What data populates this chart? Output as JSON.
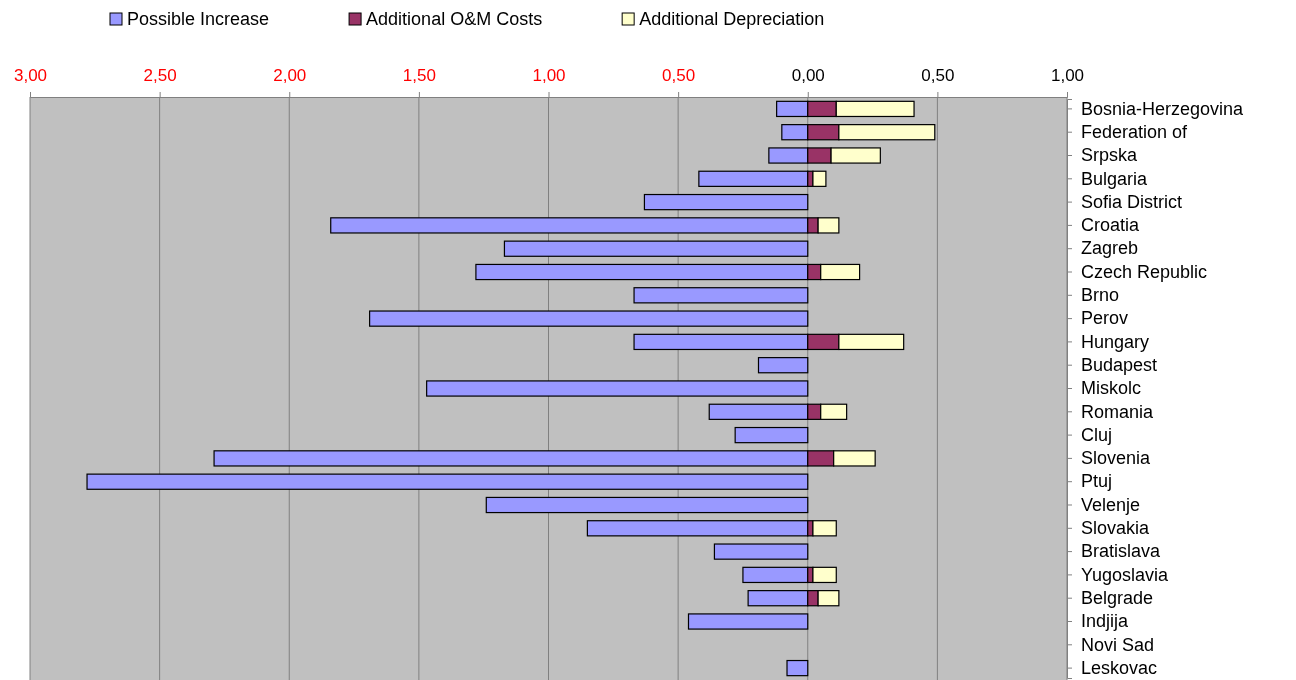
{
  "chart_data": {
    "type": "bar",
    "orientation": "horizontal",
    "stacked": true,
    "grid": "x",
    "legend": "top",
    "categories": [
      "Bosnia-Herzegovina",
      "Federation of",
      "Srpska",
      "Bulgaria",
      "Sofia District",
      "Croatia",
      "Zagreb",
      "Czech Republic",
      "Brno",
      "Perov",
      "Hungary",
      "Budapest",
      "Miskolc",
      "Romania",
      "Cluj",
      "Slovenia",
      "Ptuj",
      "Velenje",
      "Slovakia",
      "Bratislava",
      "Yugoslavia",
      "Belgrade",
      "Indjija",
      "Novi Sad",
      "Leskovac"
    ],
    "xlim": [
      -3,
      1
    ],
    "xticks": [
      {
        "value": -3,
        "label": "3,00"
      },
      {
        "value": -2.5,
        "label": "2,50"
      },
      {
        "value": -2,
        "label": "2,00"
      },
      {
        "value": -1.5,
        "label": "1,50"
      },
      {
        "value": -1,
        "label": "1,00"
      },
      {
        "value": -0.5,
        "label": "0,50"
      },
      {
        "value": 0,
        "label": "0,00"
      },
      {
        "value": 0.5,
        "label": "0,50"
      },
      {
        "value": 1,
        "label": "1,00"
      }
    ],
    "series": [
      {
        "name": "Possible Increase",
        "color": "#9999ff",
        "values": [
          -0.12,
          -0.1,
          -0.15,
          -0.42,
          -0.63,
          -1.84,
          -1.17,
          -1.28,
          -0.67,
          -1.69,
          -0.67,
          -0.19,
          -1.47,
          -0.38,
          -0.28,
          -2.29,
          -2.78,
          -1.24,
          -0.85,
          -0.36,
          -0.25,
          -0.23,
          -0.46,
          null,
          -0.08
        ]
      },
      {
        "name": "Additional O&M Costs",
        "color": "#993366",
        "values": [
          0.11,
          0.12,
          0.09,
          0.02,
          null,
          0.04,
          null,
          0.05,
          null,
          null,
          0.12,
          null,
          null,
          0.05,
          null,
          0.1,
          null,
          null,
          0.02,
          null,
          0.02,
          0.04,
          null,
          null,
          null
        ]
      },
      {
        "name": "Additional Depreciation",
        "color": "#ffffcc",
        "values": [
          0.3,
          0.37,
          0.19,
          0.05,
          null,
          0.08,
          null,
          0.15,
          null,
          null,
          0.25,
          null,
          null,
          0.1,
          null,
          0.16,
          null,
          null,
          0.09,
          null,
          0.09,
          0.08,
          null,
          null,
          null
        ]
      }
    ]
  }
}
